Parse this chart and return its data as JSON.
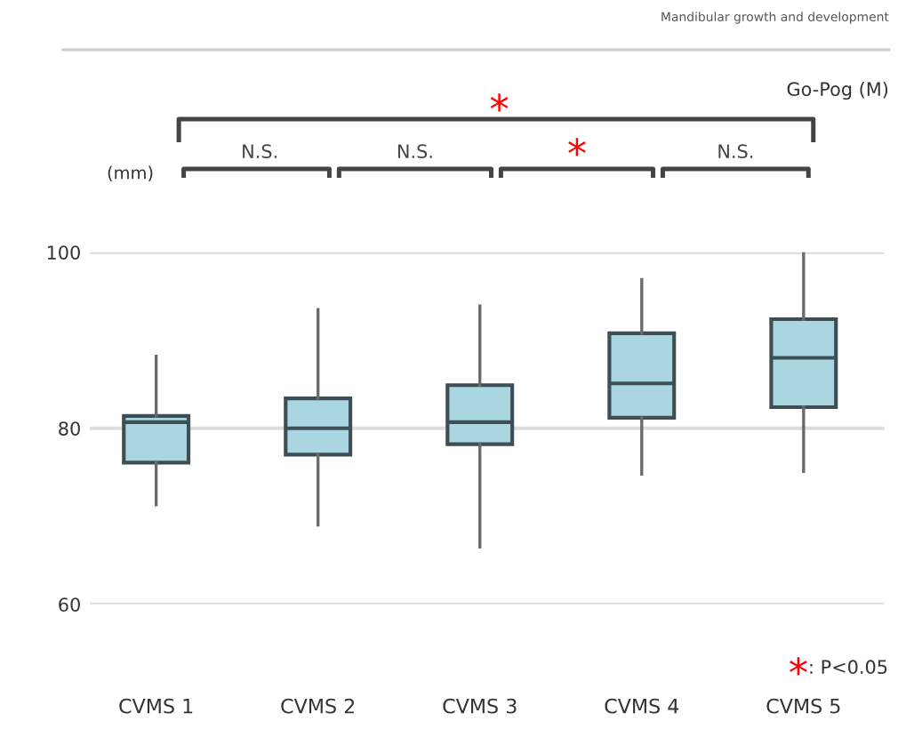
{
  "chart_data": {
    "type": "box",
    "subtitle": "Mandibular growth and development",
    "ylabel": "(mm)",
    "title": "Go-Pog (M)",
    "categories": [
      "CVMS 1",
      "CVMS 2",
      "CVMS 3",
      "CVMS 4",
      "CVMS 5"
    ],
    "boxes": [
      {
        "low": 71.3,
        "q1": 76.1,
        "median": 80.7,
        "q3": 81.4,
        "high": 88.2
      },
      {
        "low": 69,
        "q1": 77,
        "median": 80,
        "q3": 83.4,
        "high": 93.5
      },
      {
        "low": 66.5,
        "q1": 78.2,
        "median": 80.7,
        "q3": 84.9,
        "high": 93.9
      },
      {
        "low": 74.8,
        "q1": 81.2,
        "median": 85.1,
        "q3": 90.8,
        "high": 96.9
      },
      {
        "low": 75.1,
        "q1": 82.4,
        "median": 88,
        "q3": 92.4,
        "high": 100
      }
    ],
    "color": "#a9d6e0",
    "ylim": [
      60,
      100
    ],
    "yticks": [
      60,
      80,
      100
    ],
    "grid": "y",
    "annotations": [
      "N.S.",
      "N.S.",
      "*",
      "N.S.",
      "*",
      "*",
      ": P<0.05"
    ]
  }
}
